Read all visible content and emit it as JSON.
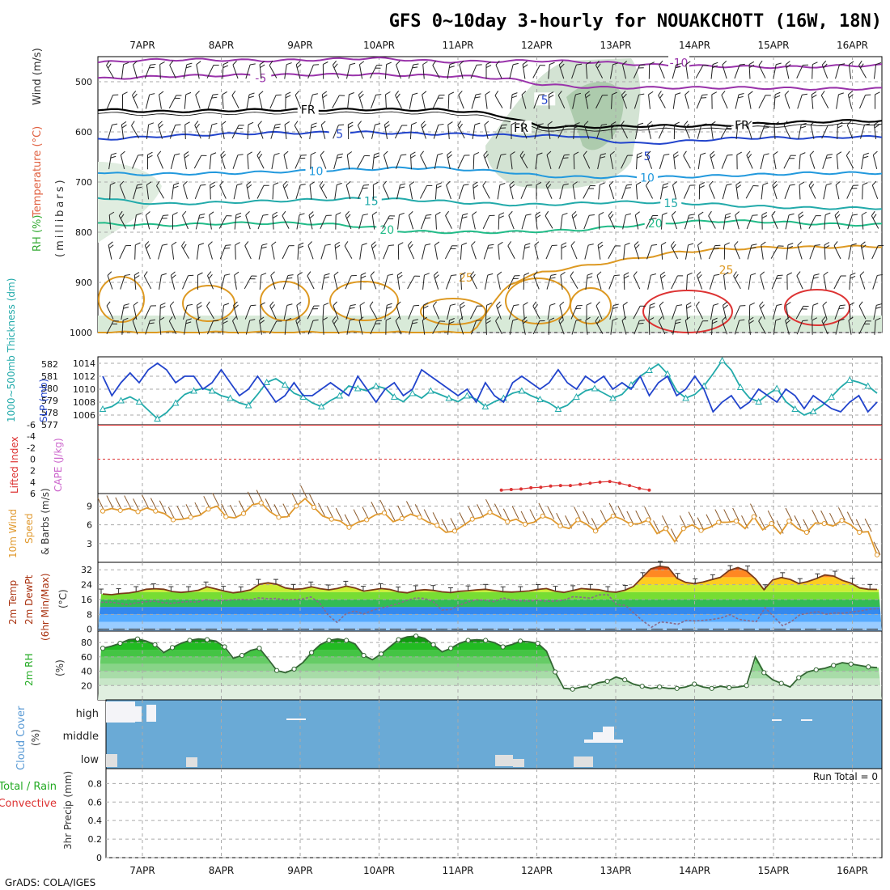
{
  "title": "GFS 0~10day 3-hourly for NOUAKCHOTT (16W, 18N)",
  "credit": "GrADS: COLA/IGES",
  "colors": {
    "wind_label": "#333333",
    "temp_label": "#e06040",
    "rh_label": "#22aa22",
    "slp": "#2244cc",
    "thickness": "#22aaaa",
    "li": "#dd3333",
    "cape": "#cc66cc",
    "wind10": "#e09a30",
    "rh_fill": "#33cc33",
    "cloud": "#6aaad6",
    "grid": "#aaaaaa",
    "temp_fill_hi": "#e05020",
    "temp_fill_lo": "#3388ee"
  },
  "chart_data": [
    {
      "id": "upper_air",
      "type": "heatmap",
      "ylabel_parts": [
        "RH (%)",
        "Temperature (°C)",
        "Wind (m/s)"
      ],
      "ylabel_units": "(millibars)",
      "yticks": [
        "500",
        "600",
        "700",
        "800",
        "900",
        "1000"
      ],
      "ylim": [
        450,
        1000
      ],
      "x_ticks": [
        "7APR",
        "8APR",
        "9APR",
        "10APR",
        "11APR",
        "12APR",
        "13APR",
        "14APR",
        "15APR",
        "16APR"
      ],
      "isotherms": [
        {
          "level": "-10",
          "color": "#9933aa",
          "p": [
            462,
            458,
            456,
            456,
            457,
            458,
            457,
            455,
            453,
            456,
            460,
            460,
            459,
            458,
            460,
            462,
            466,
            468,
            469,
            470,
            471,
            470,
            468,
            467
          ]
        },
        {
          "level": "-5",
          "color": "#9933aa",
          "p": [
            494,
            492,
            489,
            488,
            487,
            487,
            486,
            486,
            485,
            487,
            488,
            490,
            494,
            505,
            510,
            512,
            512,
            512,
            512,
            512,
            513,
            514,
            514,
            514
          ]
        },
        {
          "level": "FR",
          "color": "#000000",
          "p": [
            555,
            558,
            560,
            558,
            557,
            556,
            556,
            556,
            555,
            556,
            556,
            560,
            570,
            590,
            590,
            590,
            588,
            588,
            588,
            585,
            582,
            580,
            578,
            578
          ]
        },
        {
          "level": "5",
          "color": "#2244cc",
          "p": [
            615,
            612,
            608,
            606,
            604,
            602,
            602,
            601,
            601,
            603,
            604,
            605,
            607,
            608,
            608,
            618,
            624,
            620,
            615,
            612,
            612,
            612,
            610,
            610
          ]
        },
        {
          "level": "10",
          "color": "#2299dd",
          "p": [
            680,
            685,
            684,
            683,
            682,
            680,
            678,
            676,
            674,
            672,
            672,
            676,
            680,
            688,
            690,
            690,
            690,
            690,
            688,
            686,
            684,
            682,
            682,
            682
          ]
        },
        {
          "level": "15",
          "color": "#22aaaa",
          "p": [
            730,
            740,
            744,
            742,
            740,
            738,
            736,
            734,
            733,
            735,
            738,
            742,
            745,
            745,
            743,
            740,
            740,
            742,
            744,
            748,
            750,
            752,
            752,
            752
          ]
        },
        {
          "level": "20",
          "color": "#22bb88",
          "p": [
            783,
            785,
            786,
            784,
            782,
            782,
            782,
            785,
            790,
            798,
            800,
            800,
            800,
            798,
            796,
            790,
            785,
            780,
            778,
            778,
            780,
            783,
            785,
            785
          ]
        },
        {
          "level": "25",
          "color": "#dd9922",
          "p": [
            1000,
            1000,
            1000,
            1000,
            1000,
            1000,
            1000,
            1000,
            1000,
            1000,
            1000,
            1000,
            905,
            880,
            870,
            860,
            850,
            840,
            835,
            832,
            830,
            830,
            829,
            828
          ]
        }
      ],
      "iso_labels": [
        {
          "text": "-10",
          "day": 6.8,
          "p": 462
        },
        {
          "text": "-5",
          "day": 1.5,
          "p": 493
        },
        {
          "text": "FR",
          "day": 2.1,
          "p": 556
        },
        {
          "text": "FR",
          "day": 4.8,
          "p": 592
        },
        {
          "text": "FR",
          "day": 7.6,
          "p": 586
        },
        {
          "text": "5",
          "day": 2.5,
          "p": 604
        },
        {
          "text": "5",
          "day": 5.1,
          "p": 536
        },
        {
          "text": "5",
          "day": 6.4,
          "p": 648
        },
        {
          "text": "10",
          "day": 2.2,
          "p": 678
        },
        {
          "text": "10",
          "day": 6.4,
          "p": 691
        },
        {
          "text": "15",
          "day": 2.9,
          "p": 738
        },
        {
          "text": "15",
          "day": 6.7,
          "p": 742
        },
        {
          "text": "20",
          "day": 3.1,
          "p": 795
        },
        {
          "text": "20",
          "day": 6.5,
          "p": 782
        },
        {
          "text": "25",
          "day": 4.1,
          "p": 890
        },
        {
          "text": "25",
          "day": 7.4,
          "p": 875
        }
      ]
    },
    {
      "id": "slp_thickness",
      "type": "line",
      "ylabel_left": "1000~500mb Thickness (dm)",
      "ylabel_right": "SLP (mb)",
      "yticks_thick": [
        "582",
        "581",
        "580",
        "579",
        "578",
        "577"
      ],
      "yticks_slp": [
        "1014",
        "1012",
        "1010",
        "1008",
        "1006"
      ],
      "ylim_slp": [
        1004.5,
        1015
      ],
      "ylim_thick": [
        577,
        582.6
      ],
      "series": [
        {
          "name": "SLP (mb)",
          "values": [
            1012,
            1009,
            1011,
            1012.5,
            1011,
            1013,
            1014,
            1013,
            1011,
            1012,
            1012,
            1010,
            1011,
            1013,
            1011,
            1009,
            1010,
            1012,
            1010,
            1008,
            1009,
            1011,
            1009,
            1009,
            1010,
            1011,
            1010,
            1009,
            1012,
            1010,
            1008,
            1010,
            1011,
            1009,
            1010,
            1013,
            1012,
            1011,
            1010,
            1009,
            1010,
            1008,
            1011,
            1009,
            1008,
            1011,
            1012,
            1011,
            1010,
            1011,
            1013,
            1011,
            1010,
            1012,
            1011,
            1012,
            1010,
            1011,
            1010,
            1012,
            1009,
            1011,
            1012,
            1009,
            1010,
            1012,
            1010,
            1006.5,
            1008,
            1009,
            1007,
            1008,
            1010,
            1009,
            1008,
            1010,
            1009,
            1007,
            1009,
            1008,
            1007,
            1006.5,
            1008,
            1009,
            1006.5,
            1008
          ]
        },
        {
          "name": "Thickness (dm)",
          "values": [
            578.3,
            578.5,
            579,
            579.3,
            578.9,
            578.2,
            577.5,
            578,
            578.8,
            579.5,
            579.8,
            580,
            579.8,
            579.4,
            579.2,
            578.8,
            578.6,
            579.5,
            580.5,
            580.8,
            580.3,
            579.6,
            579.3,
            578.8,
            578.5,
            579,
            579.4,
            580.2,
            580,
            579.8,
            580.2,
            580,
            579.3,
            578.9,
            579.6,
            579.2,
            579.8,
            579.5,
            579.2,
            578.9,
            579.4,
            579.1,
            578.5,
            578.9,
            579.2,
            579.6,
            579.8,
            579.4,
            579.1,
            578.8,
            578.3,
            578.6,
            579.3,
            579.8,
            580,
            579.6,
            579.2,
            579.5,
            580.3,
            581,
            581.5,
            582,
            581.2,
            579.8,
            579.2,
            579.5,
            580.2,
            581.2,
            582.3,
            581.5,
            580.1,
            579.2,
            578.9,
            579.5,
            580,
            578.9,
            578.3,
            577.8,
            578.1,
            578.6,
            579.3,
            580.1,
            580.7,
            580.5,
            580.2,
            579.6
          ]
        }
      ]
    },
    {
      "id": "li_cape",
      "type": "line",
      "ylabel_left": "Lifted Index",
      "ylabel_right": "CAPE (J/kg)",
      "yticks": [
        "-6",
        "-4",
        "-2",
        "0",
        "2",
        "4",
        "6"
      ],
      "ylim": [
        -6,
        6
      ],
      "series": [
        {
          "name": "Lifted Index",
          "values": [
            5.4,
            5.3,
            5.2,
            5.0,
            4.9,
            4.7,
            4.6,
            4.6,
            4.4,
            4.2,
            4.0,
            3.9,
            4.2,
            4.6,
            5.1,
            5.4
          ],
          "day_start": 4.55,
          "day_step": 0.125
        }
      ]
    },
    {
      "id": "wind10",
      "type": "line",
      "ylabel_left": "10m Wind",
      "ylabel_mid": "Speed",
      "ylabel_right": "& Barbs (m/s)",
      "yticks": [
        "3",
        "6",
        "9"
      ],
      "ylim": [
        0,
        11
      ],
      "series": [
        {
          "name": "10m Wind Speed",
          "values": [
            8.2,
            8.6,
            8.3,
            8.6,
            8.1,
            8.7,
            8.2,
            7.8,
            6.8,
            6.9,
            7.2,
            7.5,
            8.5,
            9.0,
            7.3,
            7.1,
            7.8,
            9.2,
            9.5,
            8.1,
            7.2,
            7.3,
            9.0,
            10.2,
            8.8,
            7.4,
            6.9,
            6.6,
            5.6,
            6.4,
            6.8,
            7.6,
            7.9,
            6.5,
            7.0,
            7.7,
            7.2,
            6.4,
            5.9,
            4.8,
            5.0,
            5.9,
            6.9,
            7.2,
            8.0,
            7.3,
            6.5,
            6.9,
            6.1,
            6.4,
            7.4,
            6.9,
            5.8,
            5.4,
            6.8,
            6.1,
            5.0,
            6.3,
            7.4,
            6.9,
            6.1,
            6.2,
            6.8,
            4.6,
            5.4,
            3.3,
            5.4,
            6.0,
            5.1,
            5.6,
            6.4,
            6.4,
            6.6,
            5.4,
            7.3,
            5.2,
            6.2,
            4.6,
            6.6,
            5.4,
            4.8,
            6.3,
            6.2,
            5.8,
            6.7,
            6.0,
            4.8,
            4.9,
            1.2
          ]
        }
      ]
    },
    {
      "id": "temp2m",
      "type": "area",
      "ylabel_parts": [
        "2m Temp",
        "2m DewPt",
        "(6hr Min/Max)"
      ],
      "ylabel_units": "(°C)",
      "yticks": [
        "0",
        "8",
        "16",
        "24",
        "32"
      ],
      "ylim": [
        -1,
        36
      ],
      "series": [
        {
          "name": "2m Temp",
          "values": [
            19,
            18.6,
            19.2,
            19.5,
            20.3,
            21.5,
            21.8,
            21.5,
            20.3,
            19.8,
            20.3,
            21,
            22.8,
            21.7,
            20.5,
            19.6,
            20.2,
            21.2,
            24.2,
            25,
            24.2,
            22.2,
            21.5,
            21.8,
            22.8,
            21.8,
            21.2,
            22,
            23.2,
            22.2,
            20.5,
            21.2,
            21.9,
            21.4,
            20.1,
            19.6,
            20.8,
            21.3,
            20.9,
            20.1,
            19.7,
            20.4,
            20.7,
            21.2,
            21.5,
            20.8,
            20.2,
            20,
            20.3,
            20.6,
            21.4,
            21.9,
            20.5,
            19.8,
            20.8,
            21.9,
            21.5,
            21.3,
            20.3,
            19.9,
            21,
            23,
            27.8,
            32.5,
            33.9,
            33.2,
            27.4,
            25.2,
            24.5,
            25.4,
            26.7,
            27.9,
            31.6,
            33.2,
            31.4,
            27.2,
            21.3,
            26.5,
            27.8,
            26.8,
            24.6,
            25.6,
            27.2,
            29.2,
            28.6,
            26.3,
            24.8,
            22.2,
            21.5,
            21.4
          ]
        },
        {
          "name": "2m DewPt",
          "values": [
            14.5,
            14.6,
            14,
            13.2,
            14.2,
            14.7,
            15.1,
            14.4,
            13.9,
            14.5,
            14.9,
            14.6,
            15.9,
            15.3,
            15.4,
            15.8,
            16,
            15.8,
            16.9,
            16.5,
            16.6,
            15.8,
            15.9,
            16.2,
            17.4,
            14.2,
            7.5,
            3.7,
            8.2,
            9.9,
            8.2,
            10,
            11.4,
            12.5,
            13.8,
            15.5,
            16.8,
            16.6,
            14.9,
            10.3,
            10.6,
            12.9,
            14.7,
            15.8,
            15.5,
            14.8,
            16.9,
            15.7,
            15.3,
            15.1,
            15.6,
            15,
            15.1,
            15.7,
            17.5,
            17.2,
            16.7,
            18.5,
            18.6,
            13.2,
            12.9,
            8.6,
            4.5,
            1.1,
            3.9,
            3.5,
            2.7,
            4.8,
            4.5,
            4.8,
            5.3,
            6.1,
            7.9,
            5.3,
            4.6,
            4.1,
            11.6,
            6.7,
            1.9,
            4.1,
            7.9,
            8.6,
            9.5,
            8.1,
            8.8,
            8.6,
            9.3,
            9.9,
            10.8,
            11.1
          ]
        }
      ]
    },
    {
      "id": "rh2m",
      "type": "area",
      "ylabel_left": "2m RH",
      "ylabel_units": "(%)",
      "yticks": [
        "20",
        "40",
        "60",
        "80"
      ],
      "ylim": [
        0,
        96
      ],
      "series": [
        {
          "name": "2m RH",
          "values": [
            72,
            75,
            79,
            84,
            85,
            82,
            77,
            66,
            73,
            79,
            83,
            85,
            84,
            82,
            74,
            58,
            62,
            69,
            72,
            57,
            41,
            38,
            43,
            52,
            66,
            77,
            83,
            85,
            83,
            78,
            62,
            56,
            64,
            74,
            84,
            88,
            89,
            86,
            77,
            67,
            72,
            79,
            83,
            84,
            83,
            80,
            74,
            77,
            82,
            81,
            79,
            68,
            39,
            16,
            15,
            18,
            19,
            24,
            26,
            32,
            28,
            22,
            19,
            16,
            18,
            16,
            16,
            18,
            22,
            18,
            16,
            19,
            17,
            18,
            20,
            60,
            38,
            28,
            23,
            18,
            31,
            39,
            42,
            44,
            48,
            52,
            50,
            48,
            46,
            45
          ]
        }
      ]
    },
    {
      "id": "cloud",
      "type": "heatmap",
      "ylabel_left": "Cloud Cover",
      "ylabel_units": "(%)",
      "row_labels": [
        "high",
        "middle",
        "low"
      ]
    },
    {
      "id": "precip",
      "type": "bar",
      "ylabel_left": "Total / Rain",
      "ylabel_left2": "Convective",
      "ylabel_right": "3hr Precip (mm)",
      "yticks": [
        "0",
        "0.2",
        "0.4",
        "0.6",
        "0.8"
      ],
      "ylim": [
        0,
        0.96
      ],
      "run_total": "Run Total = 0",
      "values": []
    }
  ]
}
